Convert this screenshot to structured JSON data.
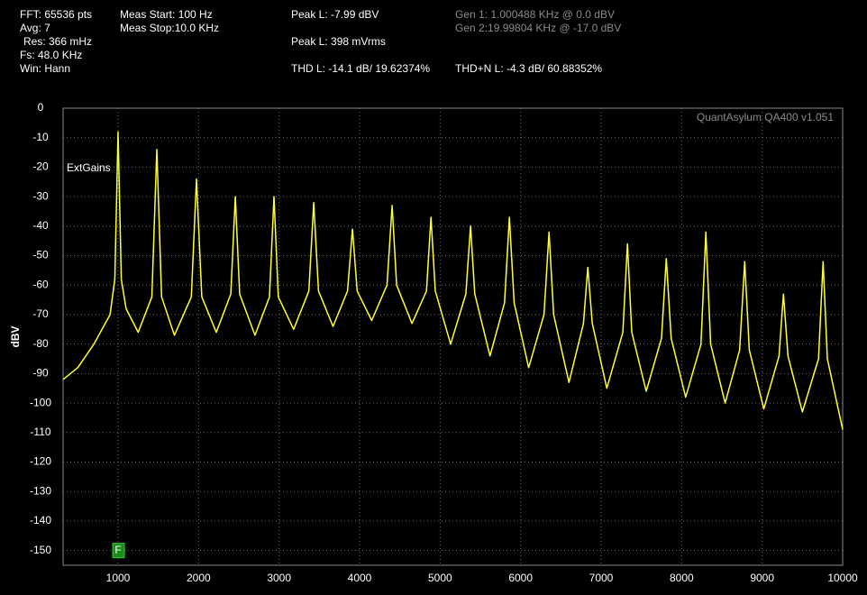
{
  "header": {
    "fft": "FFT: 65536 pts",
    "avg": "Avg: 7",
    "res": "Res: 366 mHz",
    "fs": "Fs: 48.0 KHz",
    "win": "Win: Hann",
    "meas_start": "Meas Start: 100 Hz",
    "meas_stop": "Meas Stop:10.0 KHz",
    "peak_dbv": "Peak L: -7.99 dBV",
    "peak_vrms": "Peak L: 398 mVrms",
    "thd": "THD L: -14.1 dB/ 19.62374%",
    "thdn": "THD+N L: -4.3 dB/ 60.88352%",
    "gen1": "Gen 1: 1.000488 KHz @ 0.0  dBV",
    "gen2": "Gen 2:19.99804 KHz @ -17.0  dBV"
  },
  "chart_data": {
    "type": "line",
    "ylabel": "dBV",
    "watermark": "QuantAsylum QA400 v1.051",
    "note": "ExtGains",
    "marker": {
      "label": "F",
      "x": 1000,
      "y": -150
    },
    "color": "#ffff33",
    "grid": true,
    "xlim": [
      317,
      10000
    ],
    "ylim": [
      -155,
      0
    ],
    "xticks": [
      1000,
      2000,
      3000,
      4000,
      5000,
      6000,
      7000,
      8000,
      9000,
      10000
    ],
    "yticks": [
      0,
      -10,
      -20,
      -30,
      -40,
      -50,
      -60,
      -70,
      -80,
      -90,
      -100,
      -110,
      -120,
      -130,
      -140,
      -150
    ],
    "x": [
      317,
      500,
      700,
      900,
      960,
      1000,
      1040,
      1100,
      1250,
      1420,
      1481,
      1540,
      1700,
      1910,
      1974,
      2040,
      2220,
      2400,
      2456,
      2510,
      2700,
      2880,
      2937,
      2990,
      3180,
      3370,
      3430,
      3490,
      3670,
      3850,
      3911,
      3970,
      4150,
      4340,
      4404,
      4460,
      4650,
      4830,
      4886,
      4940,
      5130,
      5320,
      5378,
      5430,
      5620,
      5800,
      5860,
      5920,
      6100,
      6290,
      6353,
      6410,
      6600,
      6780,
      6834,
      6890,
      7070,
      7270,
      7327,
      7380,
      7560,
      7750,
      7809,
      7870,
      8050,
      8240,
      8301,
      8360,
      8540,
      8720,
      8783,
      8840,
      9020,
      9210,
      9264,
      9320,
      9500,
      9700,
      9757,
      9810,
      10000
    ],
    "values": [
      -92,
      -88,
      -80,
      -70,
      -58,
      -8,
      -58,
      -68,
      -76,
      -64,
      -14,
      -64,
      -77,
      -64,
      -24,
      -64,
      -76,
      -63,
      -30,
      -63,
      -77,
      -64,
      -30,
      -64,
      -75,
      -62,
      -32,
      -62,
      -74,
      -62,
      -41,
      -62,
      -72,
      -60,
      -33,
      -60,
      -73,
      -62,
      -37,
      -62,
      -80,
      -63,
      -40,
      -63,
      -84,
      -66,
      -37,
      -66,
      -88,
      -70,
      -42,
      -70,
      -93,
      -73,
      -54,
      -73,
      -95,
      -76,
      -46,
      -76,
      -96,
      -78,
      -51,
      -78,
      -98,
      -80,
      -42,
      -80,
      -100,
      -82,
      -52,
      -82,
      -102,
      -84,
      -63,
      -84,
      -103,
      -85,
      -52,
      -85,
      -109
    ]
  }
}
